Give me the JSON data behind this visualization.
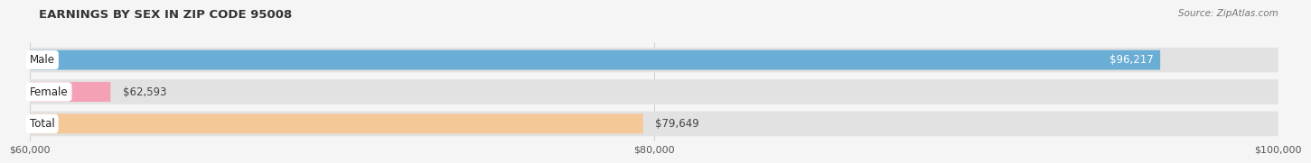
{
  "title": "EARNINGS BY SEX IN ZIP CODE 95008",
  "source": "Source: ZipAtlas.com",
  "categories": [
    "Male",
    "Female",
    "Total"
  ],
  "values": [
    96217,
    62593,
    79649
  ],
  "bar_colors": [
    "#6aaed6",
    "#f4a0b5",
    "#f5c897"
  ],
  "value_labels": [
    "$96,217",
    "$62,593",
    "$79,649"
  ],
  "value_label_inside": [
    true,
    false,
    false
  ],
  "xmin": 60000,
  "xmax": 100000,
  "xticks": [
    60000,
    80000,
    100000
  ],
  "xtick_labels": [
    "$60,000",
    "$80,000",
    "$100,000"
  ],
  "background_color": "#f5f5f5",
  "track_color": "#e2e2e2",
  "label_bg_color": "#ffffff",
  "title_fontsize": 9.5,
  "label_fontsize": 8.5,
  "value_fontsize": 8.5,
  "source_fontsize": 7.5
}
